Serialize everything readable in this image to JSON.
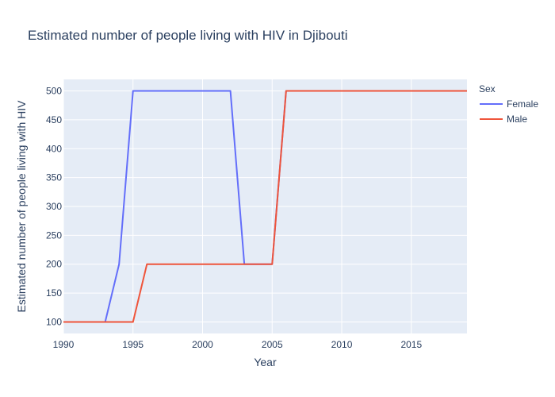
{
  "chart_data": {
    "type": "line",
    "title": "Estimated number of people living with HIV in Djibouti",
    "xlabel": "Year",
    "ylabel": "Estimated number of people living with HIV",
    "xlim": [
      1990,
      2019
    ],
    "ylim": [
      80,
      520
    ],
    "xticks": [
      1990,
      1995,
      2000,
      2005,
      2010,
      2015
    ],
    "yticks": [
      100,
      150,
      200,
      250,
      300,
      350,
      400,
      450,
      500
    ],
    "grid": true,
    "legend_title": "Sex",
    "legend_position": "right",
    "series": [
      {
        "name": "Female",
        "color": "#636efa",
        "x": [
          1990,
          1991,
          1992,
          1993,
          1994,
          1995,
          1996,
          1997,
          1998,
          1999,
          2000,
          2001,
          2002,
          2003,
          2004,
          2005,
          2006,
          2007,
          2008,
          2009,
          2010,
          2011,
          2012,
          2013,
          2014,
          2015,
          2016,
          2017,
          2018,
          2019
        ],
        "values": [
          100,
          100,
          100,
          100,
          200,
          500,
          500,
          500,
          500,
          500,
          500,
          500,
          500,
          200,
          200,
          200,
          500,
          500,
          500,
          500,
          500,
          500,
          500,
          500,
          500,
          500,
          500,
          500,
          500,
          500
        ]
      },
      {
        "name": "Male",
        "color": "#ef553b",
        "x": [
          1990,
          1991,
          1992,
          1993,
          1994,
          1995,
          1996,
          1997,
          1998,
          1999,
          2000,
          2001,
          2002,
          2003,
          2004,
          2005,
          2006,
          2007,
          2008,
          2009,
          2010,
          2011,
          2012,
          2013,
          2014,
          2015,
          2016,
          2017,
          2018,
          2019
        ],
        "values": [
          100,
          100,
          100,
          100,
          100,
          100,
          200,
          200,
          200,
          200,
          200,
          200,
          200,
          200,
          200,
          200,
          500,
          500,
          500,
          500,
          500,
          500,
          500,
          500,
          500,
          500,
          500,
          500,
          500,
          500
        ]
      }
    ]
  },
  "colors": {
    "plot_bg": "#e5ecf6",
    "grid": "#ffffff",
    "text": "#2a3f5f"
  }
}
